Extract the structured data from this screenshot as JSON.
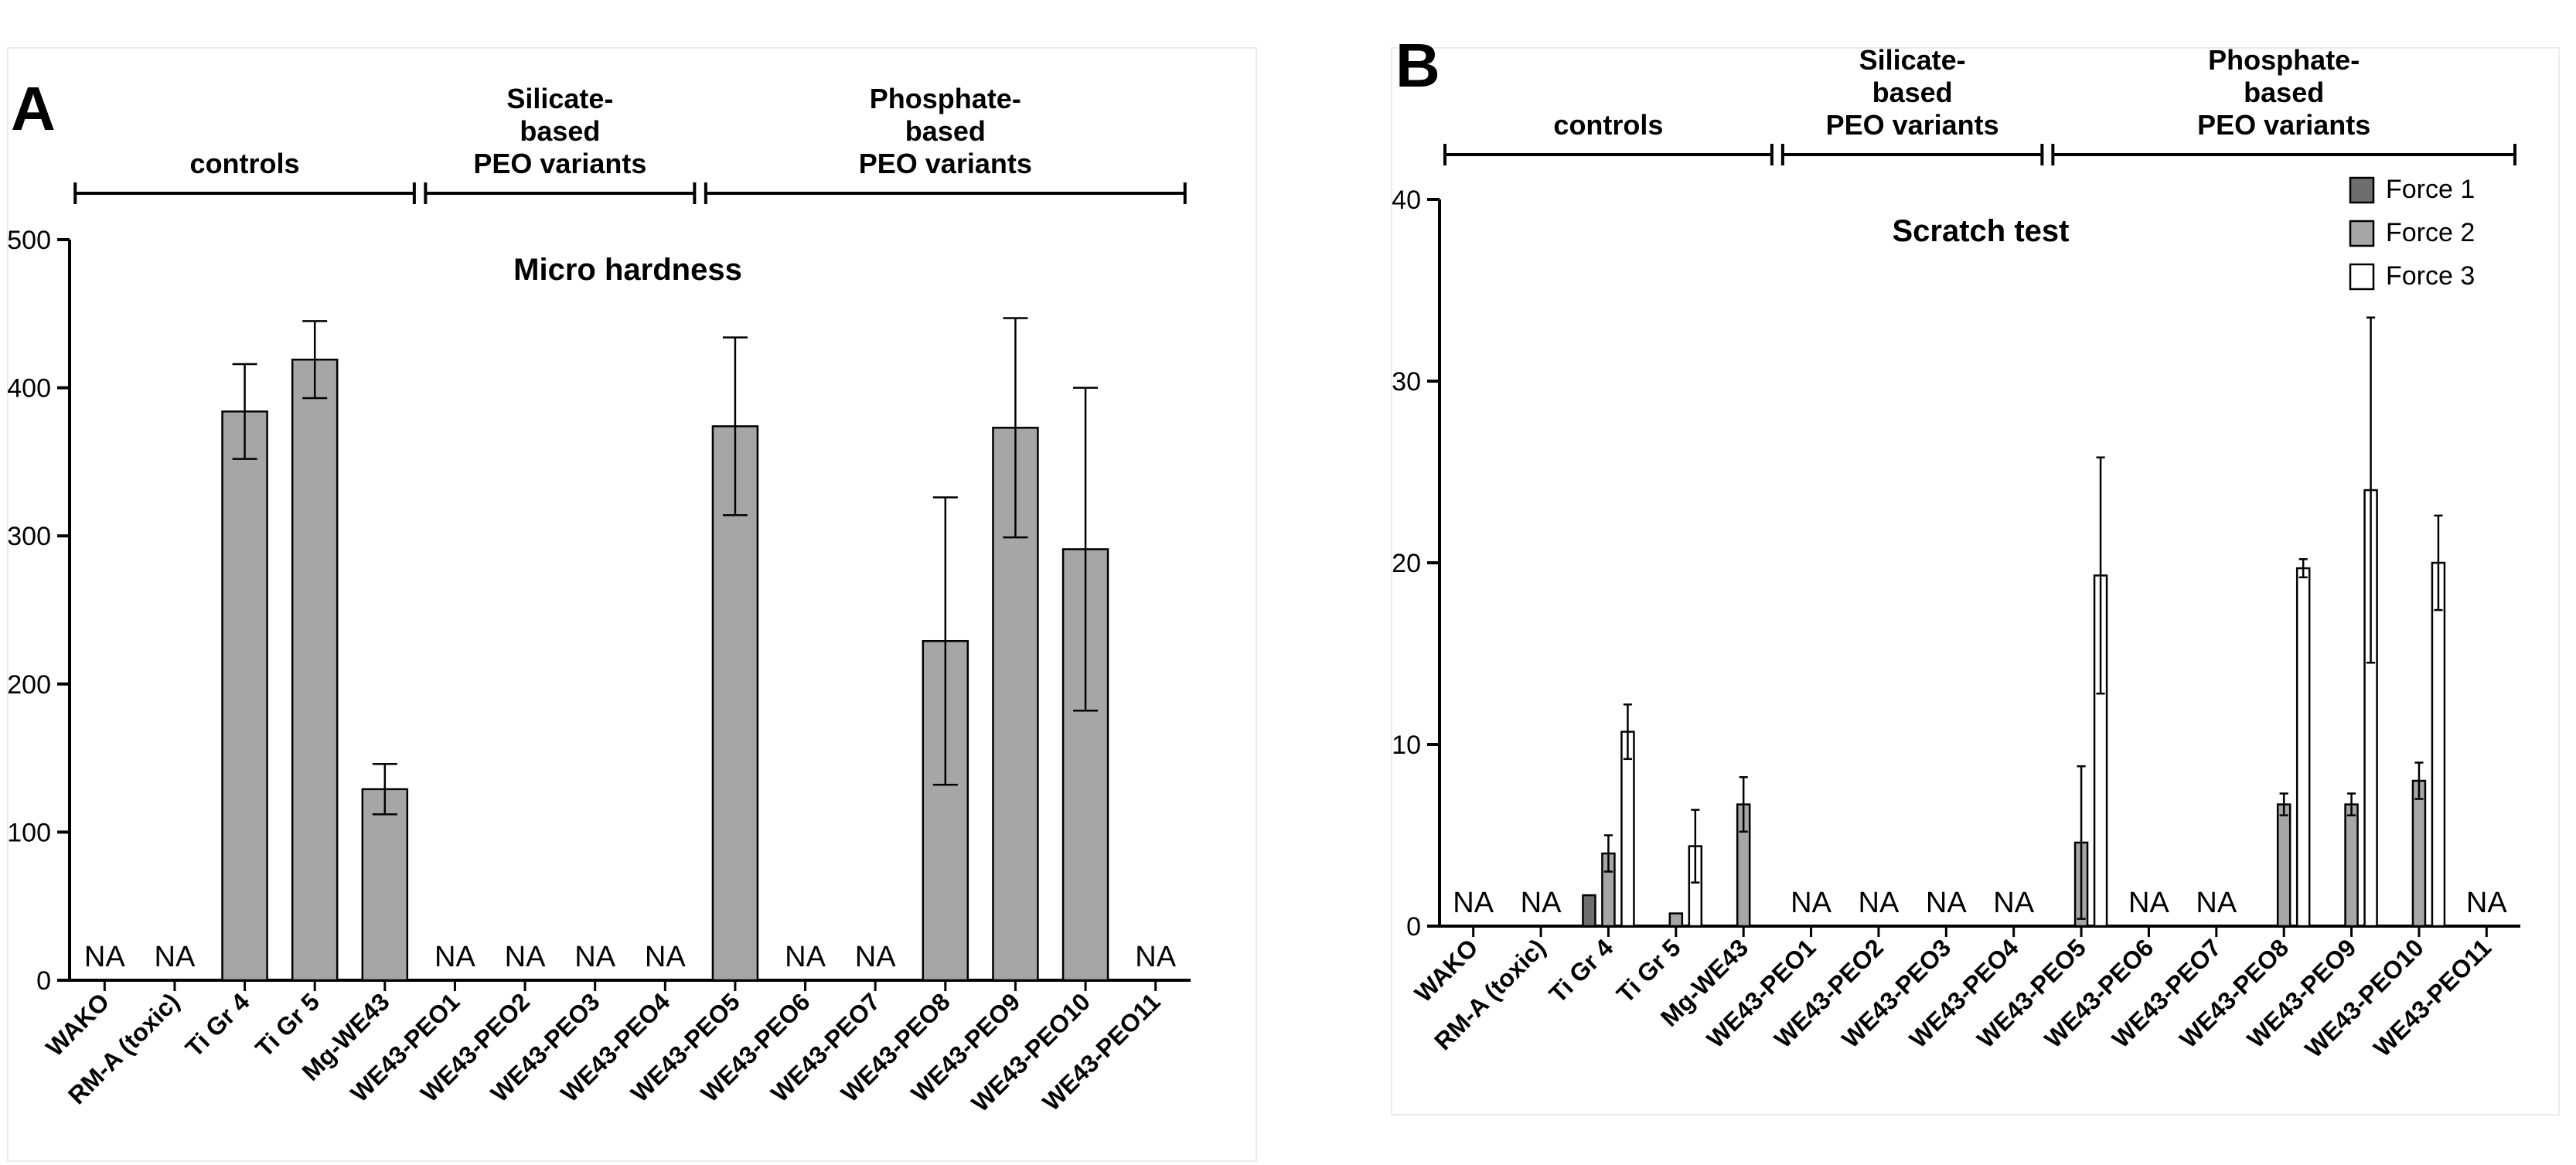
{
  "figure": {
    "colors": {
      "bar": "#a6a6a6",
      "force1": "#6e6e6e",
      "force2": "#a6a6a6",
      "force3": "#ffffff",
      "stroke": "#000000"
    }
  },
  "chart_data": [
    {
      "panel": "A",
      "type": "bar",
      "title": "Micro hardness",
      "xlabel": "",
      "ylabel": "",
      "ylim": [
        0,
        500
      ],
      "yticks": [
        "0",
        "100",
        "200",
        "300",
        "400",
        "500"
      ],
      "grid": false,
      "categories": [
        "WAKO",
        "RM-A (toxic)",
        "Ti Gr 4",
        "Ti Gr 5",
        "Mg-WE43",
        "WE43-PEO1",
        "WE43-PEO2",
        "WE43-PEO3",
        "WE43-PEO4",
        "WE43-PEO5",
        "WE43-PEO6",
        "WE43-PEO7",
        "WE43-PEO8",
        "WE43-PEO9",
        "WE43-PEO10",
        "WE43-PEO11"
      ],
      "groups": [
        {
          "label": [
            "controls"
          ],
          "from": 0,
          "to": 4
        },
        {
          "label": [
            "Silicate-",
            "based",
            "PEO variants"
          ],
          "from": 5,
          "to": 8
        },
        {
          "label": [
            "Phosphate-",
            "based",
            "PEO variants"
          ],
          "from": 9,
          "to": 15
        }
      ],
      "na_label": "NA",
      "series": [
        {
          "name": "Micro hardness",
          "values": [
            null,
            null,
            384,
            419,
            129,
            null,
            null,
            null,
            null,
            374,
            null,
            null,
            229,
            373,
            291,
            null
          ],
          "errors": [
            null,
            null,
            32,
            26,
            17,
            null,
            null,
            null,
            null,
            60,
            null,
            null,
            97,
            74,
            109,
            null
          ]
        }
      ]
    },
    {
      "panel": "B",
      "type": "bar",
      "title": "Scratch test",
      "xlabel": "",
      "ylabel": "",
      "ylim": [
        0,
        40
      ],
      "yticks": [
        "0",
        "10",
        "20",
        "30",
        "40"
      ],
      "grid": false,
      "legend_position": "top-right",
      "categories": [
        "WAKO",
        "RM-A (toxic)",
        "Ti Gr 4",
        "Ti Gr 5",
        "Mg-WE43",
        "WE43-PEO1",
        "WE43-PEO2",
        "WE43-PEO3",
        "WE43-PEO4",
        "WE43-PEO5",
        "WE43-PEO6",
        "WE43-PEO7",
        "WE43-PEO8",
        "WE43-PEO9",
        "WE43-PEO10",
        "WE43-PEO11"
      ],
      "groups": [
        {
          "label": [
            "controls"
          ],
          "from": 0,
          "to": 4
        },
        {
          "label": [
            "Silicate-",
            "based",
            "PEO variants"
          ],
          "from": 5,
          "to": 8
        },
        {
          "label": [
            "Phosphate-",
            "based",
            "PEO variants"
          ],
          "from": 9,
          "to": 15
        }
      ],
      "na_label": "NA",
      "series": [
        {
          "name": "Force 1",
          "values": [
            null,
            null,
            1.7,
            0,
            null,
            null,
            null,
            null,
            null,
            0,
            null,
            null,
            0,
            0,
            0,
            null
          ],
          "errors": [
            null,
            null,
            0,
            0,
            null,
            null,
            null,
            null,
            null,
            0,
            null,
            null,
            0,
            0,
            0,
            null
          ]
        },
        {
          "name": "Force 2",
          "values": [
            null,
            null,
            4.0,
            0.7,
            6.7,
            null,
            null,
            null,
            null,
            4.6,
            null,
            null,
            6.7,
            6.7,
            8.0,
            null
          ],
          "errors": [
            null,
            null,
            1.0,
            0,
            1.5,
            null,
            null,
            null,
            null,
            4.2,
            null,
            null,
            0.6,
            0.6,
            1.0,
            null
          ]
        },
        {
          "name": "Force 3",
          "values": [
            null,
            null,
            10.7,
            4.4,
            null,
            null,
            null,
            null,
            null,
            19.3,
            null,
            null,
            19.7,
            24.0,
            20.0,
            null
          ],
          "errors": [
            null,
            null,
            1.5,
            2.0,
            null,
            null,
            null,
            null,
            null,
            6.5,
            null,
            null,
            0.5,
            9.5,
            2.6,
            null
          ]
        }
      ]
    }
  ]
}
